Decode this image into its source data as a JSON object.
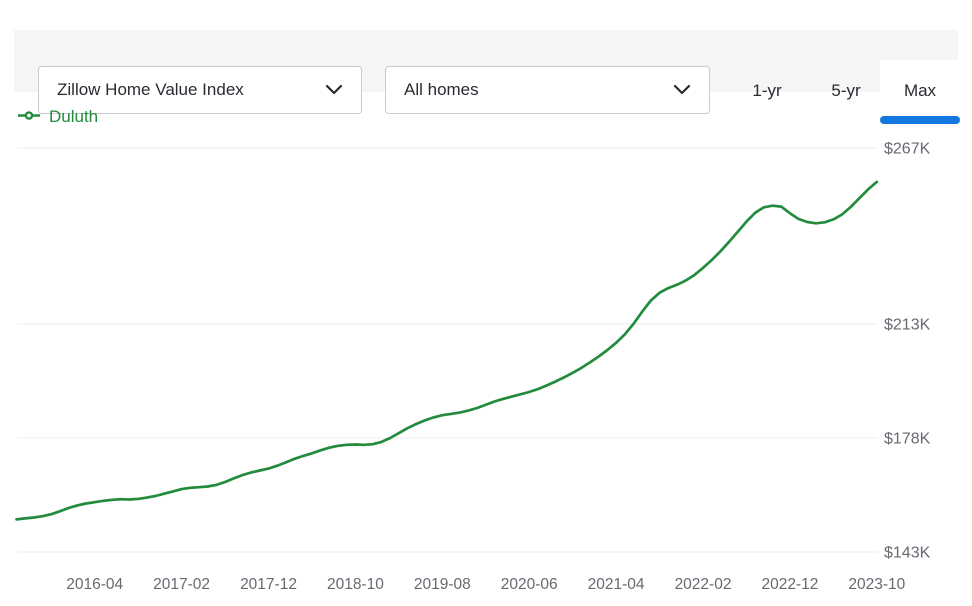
{
  "header": {
    "metric_dropdown": {
      "value": "Zillow Home Value Index"
    },
    "segment_dropdown": {
      "value": "All homes"
    },
    "range_tabs": [
      {
        "label": "1-yr",
        "active": false
      },
      {
        "label": "5-yr",
        "active": false
      },
      {
        "label": "Max",
        "active": true
      }
    ]
  },
  "legend": {
    "series_label": "Duluth"
  },
  "colors": {
    "line_green": "#228b3c",
    "active_tab_blue": "#1277e1",
    "axis_text_gray": "#686872",
    "gridline": "#eeeef0",
    "topbar_bg": "#f5f5f6"
  },
  "chart_data": {
    "type": "line",
    "title": "Zillow Home Value Index — Duluth (All homes, Max range)",
    "legend_position": "top-left",
    "y_axis_side": "right",
    "grid": true,
    "ylim": [
      141,
      270
    ],
    "y_ticks": [
      {
        "label": "$267K",
        "value": 267
      },
      {
        "label": "$213K",
        "value": 213
      },
      {
        "label": "$178K",
        "value": 178
      },
      {
        "label": "$143K",
        "value": 143
      }
    ],
    "x_tick_labels": [
      "2016-04",
      "2017-02",
      "2017-12",
      "2018-10",
      "2019-08",
      "2020-06",
      "2021-04",
      "2022-02",
      "2022-12",
      "2023-10"
    ],
    "x": [
      "2015-07",
      "2015-08",
      "2015-09",
      "2015-10",
      "2015-11",
      "2015-12",
      "2016-01",
      "2016-02",
      "2016-03",
      "2016-04",
      "2016-05",
      "2016-06",
      "2016-07",
      "2016-08",
      "2016-09",
      "2016-10",
      "2016-11",
      "2016-12",
      "2017-01",
      "2017-02",
      "2017-03",
      "2017-04",
      "2017-05",
      "2017-06",
      "2017-07",
      "2017-08",
      "2017-09",
      "2017-10",
      "2017-11",
      "2017-12",
      "2018-01",
      "2018-02",
      "2018-03",
      "2018-04",
      "2018-05",
      "2018-06",
      "2018-07",
      "2018-08",
      "2018-09",
      "2018-10",
      "2018-11",
      "2018-12",
      "2019-01",
      "2019-02",
      "2019-03",
      "2019-04",
      "2019-05",
      "2019-06",
      "2019-07",
      "2019-08",
      "2019-09",
      "2019-10",
      "2019-11",
      "2019-12",
      "2020-01",
      "2020-02",
      "2020-03",
      "2020-04",
      "2020-05",
      "2020-06",
      "2020-07",
      "2020-08",
      "2020-09",
      "2020-10",
      "2020-11",
      "2020-12",
      "2021-01",
      "2021-02",
      "2021-03",
      "2021-04",
      "2021-05",
      "2021-06",
      "2021-07",
      "2021-08",
      "2021-09",
      "2021-10",
      "2021-11",
      "2021-12",
      "2022-01",
      "2022-02",
      "2022-03",
      "2022-04",
      "2022-05",
      "2022-06",
      "2022-07",
      "2022-08",
      "2022-09",
      "2022-10",
      "2022-11",
      "2022-12",
      "2023-01",
      "2023-02",
      "2023-03",
      "2023-04",
      "2023-05",
      "2023-06",
      "2023-07",
      "2023-08",
      "2023-09",
      "2023-10"
    ],
    "series": [
      {
        "name": "Duluth",
        "color": "#228b3c",
        "unit": "$K",
        "values": [
          153.0,
          153.3,
          153.6,
          154.0,
          154.6,
          155.5,
          156.5,
          157.3,
          157.9,
          158.3,
          158.7,
          159.0,
          159.2,
          159.1,
          159.3,
          159.7,
          160.2,
          160.9,
          161.6,
          162.3,
          162.7,
          162.9,
          163.1,
          163.6,
          164.5,
          165.6,
          166.6,
          167.4,
          168.0,
          168.6,
          169.5,
          170.5,
          171.6,
          172.5,
          173.3,
          174.2,
          175.0,
          175.6,
          175.9,
          176.0,
          175.9,
          176.1,
          176.8,
          178.0,
          179.5,
          181.0,
          182.3,
          183.4,
          184.3,
          185.0,
          185.4,
          185.8,
          186.4,
          187.2,
          188.2,
          189.2,
          190.0,
          190.7,
          191.4,
          192.1,
          193.0,
          194.1,
          195.3,
          196.6,
          198.0,
          199.5,
          201.2,
          203.0,
          205.0,
          207.2,
          209.8,
          213.0,
          216.8,
          220.2,
          222.6,
          224.0,
          225.0,
          226.3,
          228.0,
          230.2,
          232.6,
          235.3,
          238.2,
          241.3,
          244.4,
          247.1,
          248.8,
          249.3,
          249.0,
          247.0,
          245.2,
          244.3,
          243.9,
          244.2,
          245.1,
          246.6,
          248.9,
          251.6,
          254.3,
          256.6
        ]
      }
    ]
  }
}
